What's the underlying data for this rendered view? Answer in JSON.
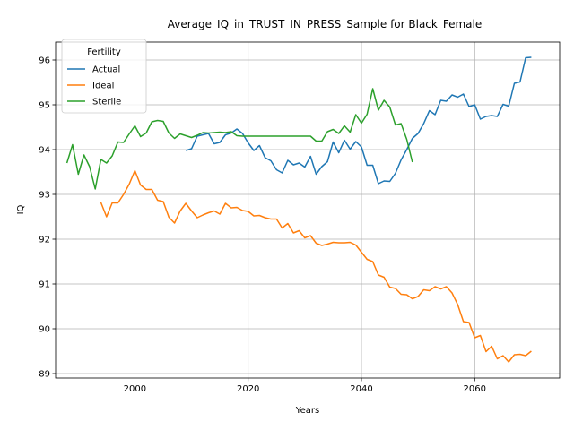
{
  "chart_data": {
    "type": "line",
    "title": "Average_IQ_in_TRUST_IN_PRESS_Sample for Black_Female",
    "xlabel": "Years",
    "ylabel": "IQ",
    "xlim": [
      1986,
      2075
    ],
    "ylim": [
      88.9,
      96.4
    ],
    "xticks": [
      2000,
      2020,
      2040,
      2060
    ],
    "yticks": [
      89,
      90,
      91,
      92,
      93,
      94,
      95,
      96
    ],
    "grid": true,
    "legend": {
      "title": "Fertility",
      "placement": "top-left"
    },
    "series": [
      {
        "name": "Actual",
        "color": "#1f77b4",
        "x": [
          2009,
          2010,
          2011,
          2012,
          2013,
          2014,
          2015,
          2016,
          2017,
          2018,
          2019,
          2020,
          2021,
          2022,
          2023,
          2024,
          2025,
          2026,
          2027,
          2028,
          2029,
          2030,
          2031,
          2032,
          2033,
          2034,
          2035,
          2036,
          2037,
          2038,
          2039,
          2040,
          2041,
          2042,
          2043,
          2044,
          2045,
          2046,
          2047,
          2048,
          2049,
          2050,
          2051,
          2052,
          2053,
          2054,
          2055,
          2056,
          2057,
          2058,
          2059,
          2060,
          2061,
          2062,
          2063,
          2064,
          2065,
          2066,
          2067,
          2068,
          2069,
          2070
        ],
        "y": [
          93.98,
          94.02,
          94.3,
          94.33,
          94.36,
          94.13,
          94.16,
          94.33,
          94.37,
          94.46,
          94.36,
          94.15,
          93.98,
          94.09,
          93.82,
          93.75,
          93.55,
          93.48,
          93.76,
          93.66,
          93.7,
          93.61,
          93.85,
          93.45,
          93.62,
          93.73,
          94.17,
          93.93,
          94.21,
          94.01,
          94.18,
          94.06,
          93.65,
          93.65,
          93.24,
          93.3,
          93.29,
          93.47,
          93.77,
          94.0,
          94.25,
          94.36,
          94.58,
          94.87,
          94.78,
          95.1,
          95.08,
          95.22,
          95.17,
          95.24,
          94.96,
          95.0,
          94.68,
          94.74,
          94.76,
          94.74,
          95.01,
          94.97,
          95.48,
          95.51,
          96.05,
          96.06
        ]
      },
      {
        "name": "Ideal",
        "color": "#ff7f0e",
        "x": [
          1994,
          1995,
          1996,
          1997,
          1998,
          1999,
          2000,
          2001,
          2002,
          2003,
          2004,
          2005,
          2006,
          2007,
          2008,
          2009,
          2010,
          2011,
          2012,
          2013,
          2014,
          2015,
          2016,
          2017,
          2018,
          2019,
          2020,
          2021,
          2022,
          2023,
          2024,
          2025,
          2026,
          2027,
          2028,
          2029,
          2030,
          2031,
          2032,
          2033,
          2034,
          2035,
          2036,
          2037,
          2038,
          2039,
          2040,
          2041,
          2042,
          2043,
          2044,
          2045,
          2046,
          2047,
          2048,
          2049,
          2050,
          2051,
          2052,
          2053,
          2054,
          2055,
          2056,
          2057,
          2058,
          2059,
          2060,
          2061,
          2062,
          2063,
          2064,
          2065,
          2066,
          2067,
          2068,
          2069,
          2070
        ],
        "y": [
          92.82,
          92.5,
          92.81,
          92.81,
          93.0,
          93.23,
          93.53,
          93.21,
          93.11,
          93.11,
          92.87,
          92.84,
          92.49,
          92.36,
          92.63,
          92.8,
          92.63,
          92.48,
          92.54,
          92.59,
          92.63,
          92.56,
          92.8,
          92.7,
          92.71,
          92.64,
          92.62,
          92.52,
          92.53,
          92.48,
          92.45,
          92.45,
          92.25,
          92.35,
          92.14,
          92.19,
          92.03,
          92.08,
          91.91,
          91.86,
          91.89,
          91.93,
          91.92,
          91.92,
          91.93,
          91.87,
          91.71,
          91.55,
          91.5,
          91.2,
          91.15,
          90.93,
          90.9,
          90.77,
          90.76,
          90.67,
          90.72,
          90.87,
          90.85,
          90.94,
          90.89,
          90.94,
          90.8,
          90.54,
          90.16,
          90.14,
          89.8,
          89.85,
          89.49,
          89.61,
          89.33,
          89.4,
          89.26,
          89.42,
          89.43,
          89.4,
          89.5
        ]
      },
      {
        "name": "Sterile",
        "color": "#2ca02c",
        "x": [
          1988,
          1989,
          1990,
          1991,
          1992,
          1993,
          1994,
          1995,
          1996,
          1997,
          1998,
          1999,
          2000,
          2001,
          2002,
          2003,
          2004,
          2005,
          2006,
          2007,
          2008,
          2009,
          2010,
          2011,
          2012,
          2013,
          2014,
          2015,
          2016,
          2017,
          2018,
          2019,
          2020,
          2021,
          2022,
          2023,
          2024,
          2025,
          2026,
          2027,
          2028,
          2029,
          2030,
          2031,
          2032,
          2033,
          2034,
          2035,
          2036,
          2037,
          2038,
          2039,
          2040,
          2041,
          2042,
          2043,
          2044,
          2045,
          2046,
          2047,
          2048,
          2049
        ],
        "y": [
          93.7,
          94.11,
          93.45,
          93.88,
          93.62,
          93.12,
          93.78,
          93.7,
          93.86,
          94.17,
          94.16,
          94.35,
          94.53,
          94.29,
          94.37,
          94.62,
          94.65,
          94.63,
          94.37,
          94.25,
          94.35,
          94.31,
          94.27,
          94.32,
          94.38,
          94.37,
          94.38,
          94.39,
          94.38,
          94.4,
          94.31,
          94.3,
          94.3,
          94.3,
          94.3,
          94.3,
          94.3,
          94.3,
          94.3,
          94.3,
          94.3,
          94.3,
          94.3,
          94.3,
          94.19,
          94.19,
          94.4,
          94.45,
          94.36,
          94.53,
          94.39,
          94.78,
          94.59,
          94.79,
          95.36,
          94.88,
          95.1,
          94.95,
          94.55,
          94.58,
          94.23,
          93.72
        ]
      }
    ]
  }
}
